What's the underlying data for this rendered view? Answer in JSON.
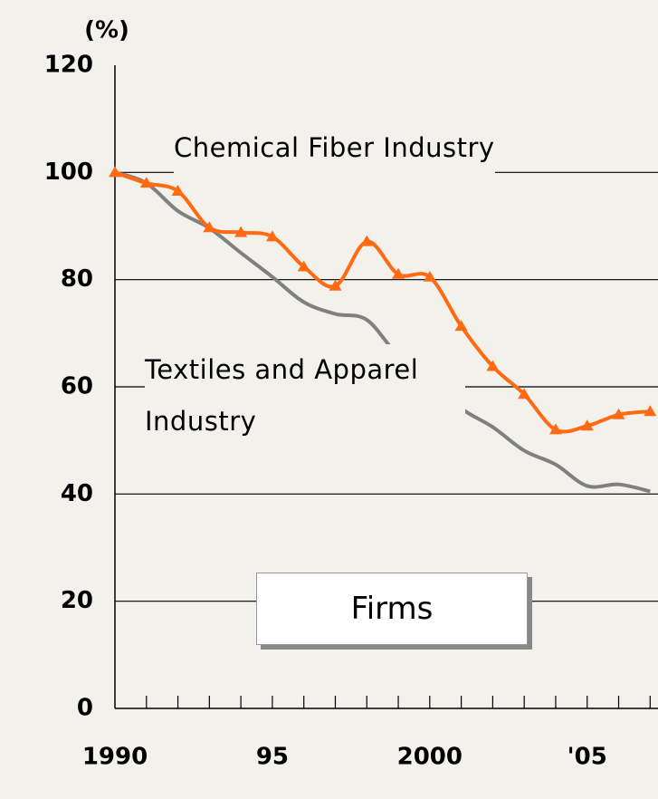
{
  "chart_data": {
    "type": "line",
    "y_label": "(%)",
    "x": [
      1990,
      1991,
      1992,
      1993,
      1994,
      1995,
      1996,
      1997,
      1998,
      1999,
      2000,
      2001,
      2002,
      2003,
      2004,
      2005,
      2006,
      2007
    ],
    "series": [
      {
        "name": "Chemical Fiber Industry",
        "color": "#ff6a13",
        "marker": "triangle",
        "values": [
          100,
          98,
          96.5,
          89.7,
          88.8,
          88,
          82.4,
          78.8,
          87.1,
          81,
          80.5,
          71.3,
          63.8,
          58.6,
          52,
          52.7,
          54.8,
          55.4
        ]
      },
      {
        "name": "Textiles and Apparel Industry",
        "color": "#808080",
        "values": [
          100,
          98,
          92.8,
          89.6,
          85,
          80.5,
          75.8,
          73.6,
          72.5,
          65.8,
          61.8,
          56,
          52.5,
          48.1,
          45.5,
          41.5,
          41.8,
          40.5
        ]
      }
    ],
    "annotation": "Firms",
    "xlim": [
      1990,
      2007.25
    ],
    "xticks": [
      1990,
      {
        "value": 1995,
        "label": "95"
      },
      2000,
      {
        "value": 2005,
        "label": "'05"
      }
    ],
    "x_minor_ticks": [
      1991,
      1992,
      1993,
      1994,
      1995,
      1996,
      1997,
      1998,
      1999,
      2000,
      2001,
      2002,
      2003,
      2004,
      2005,
      2006,
      2007
    ],
    "ylim": [
      0,
      120
    ],
    "yticks": [
      0,
      20,
      40,
      60,
      80,
      100,
      120
    ],
    "grid": true
  }
}
